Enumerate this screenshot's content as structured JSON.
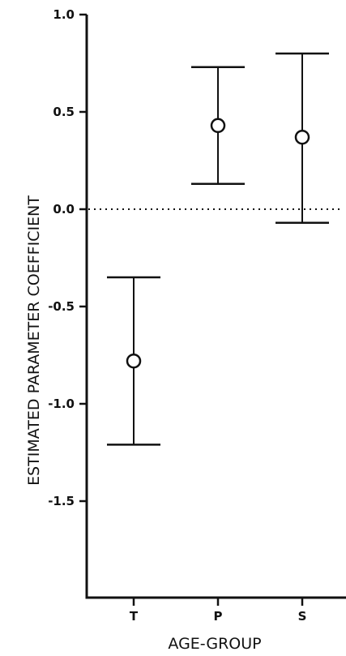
{
  "chart_data": {
    "type": "scatter",
    "title": "",
    "xlabel": "AGE-GROUP",
    "ylabel": "ESTIMATED PARAMETER COEFFICIENT",
    "categories": [
      "T",
      "P",
      "S"
    ],
    "series": [
      {
        "values": [
          -0.78,
          0.43,
          0.37
        ],
        "error_low": [
          -1.21,
          0.13,
          -0.07
        ],
        "error_high": [
          -0.35,
          0.73,
          0.8
        ]
      }
    ],
    "ylim": [
      -2.0,
      1.0
    ],
    "yticks": [
      1.0,
      0.5,
      0.0,
      -0.5,
      -1.0,
      -1.5
    ],
    "ytick_labels": [
      "1.0",
      "0.5",
      "0.0",
      "-0.5",
      "-1.0",
      "-1.5"
    ],
    "reference_line": {
      "y": 0.0,
      "style": "dotted"
    },
    "grid": false,
    "marker": "open-circle",
    "color": "#111111"
  }
}
